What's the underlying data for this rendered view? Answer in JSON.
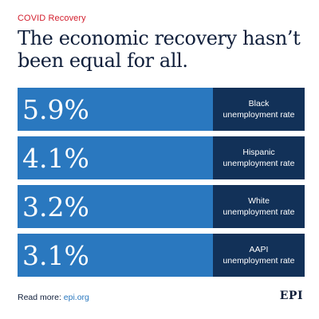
{
  "kicker": "COVID Recovery",
  "headline": "The economic recovery hasn’t been equal for all.",
  "colors": {
    "kicker": "#d3202f",
    "value_bg": "#2a78bf",
    "label_bg": "#123158",
    "text_dark": "#0f1e3a",
    "link": "#2a78bf"
  },
  "rows": [
    {
      "value": "5.9%",
      "label_line1": "Black",
      "label_line2": "unemployment rate"
    },
    {
      "value": "4.1%",
      "label_line1": "Hispanic",
      "label_line2": "unemployment rate"
    },
    {
      "value": "3.2%",
      "label_line1": "White",
      "label_line2": "unemployment rate"
    },
    {
      "value": "3.1%",
      "label_line1": "AAPI",
      "label_line2": "unemployment rate"
    }
  ],
  "footer": {
    "prefix": "Read more:",
    "link_text": "epi.org"
  },
  "logo": "EPI"
}
